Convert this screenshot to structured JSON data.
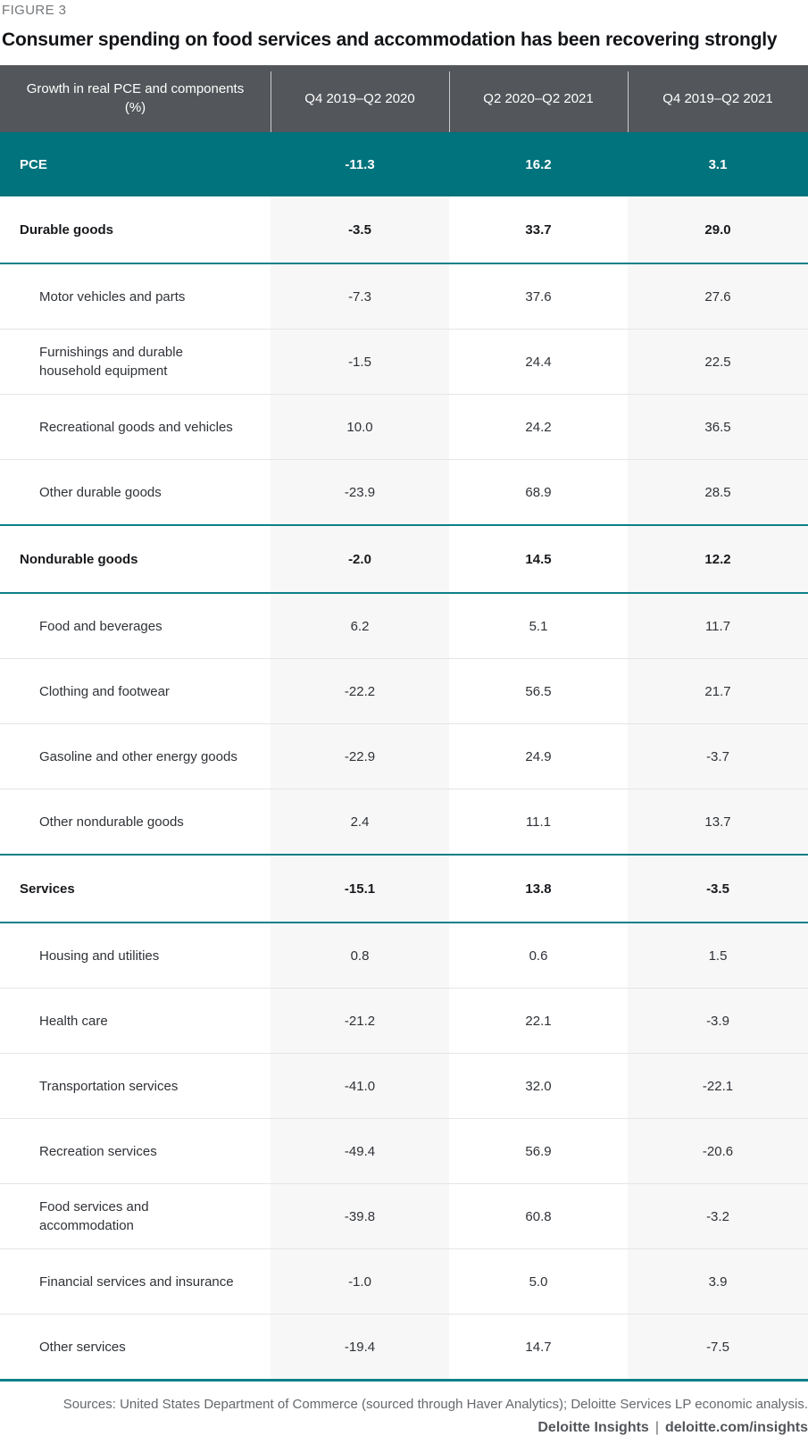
{
  "figure_label": "FIGURE 3",
  "title": "Consumer spending on food services and accommodation has been recovering strongly",
  "chart_data": {
    "type": "table",
    "title": "Consumer spending on food services and accommodation has been recovering strongly",
    "columns": [
      "Growth in real PCE and components (%)",
      "Q4 2019–Q2 2020",
      "Q2 2020–Q2 2021",
      "Q4 2019–Q2 2021"
    ],
    "rows": [
      {
        "label": "PCE",
        "values": [
          "-11.3",
          "16.2",
          "3.1"
        ],
        "type": "pce"
      },
      {
        "label": "Durable goods",
        "values": [
          "-3.5",
          "33.7",
          "29.0"
        ],
        "type": "section"
      },
      {
        "label": "Motor vehicles and parts",
        "values": [
          "-7.3",
          "37.6",
          "27.6"
        ],
        "type": "sub"
      },
      {
        "label": "Furnishings and durable\nhousehold equipment",
        "values": [
          "-1.5",
          "24.4",
          "22.5"
        ],
        "type": "sub"
      },
      {
        "label": "Recreational goods and vehicles",
        "values": [
          "10.0",
          "24.2",
          "36.5"
        ],
        "type": "sub"
      },
      {
        "label": "Other durable goods",
        "values": [
          "-23.9",
          "68.9",
          "28.5"
        ],
        "type": "sub-last"
      },
      {
        "label": "Nondurable goods",
        "values": [
          "-2.0",
          "14.5",
          "12.2"
        ],
        "type": "section"
      },
      {
        "label": "Food and beverages",
        "values": [
          "6.2",
          "5.1",
          "11.7"
        ],
        "type": "sub"
      },
      {
        "label": "Clothing and footwear",
        "values": [
          "-22.2",
          "56.5",
          "21.7"
        ],
        "type": "sub"
      },
      {
        "label": "Gasoline and other energy goods",
        "values": [
          "-22.9",
          "24.9",
          "-3.7"
        ],
        "type": "sub"
      },
      {
        "label": "Other nondurable goods",
        "values": [
          "2.4",
          "11.1",
          "13.7"
        ],
        "type": "sub-last"
      },
      {
        "label": "Services",
        "values": [
          "-15.1",
          "13.8",
          "-3.5"
        ],
        "type": "section"
      },
      {
        "label": "Housing and utilities",
        "values": [
          "0.8",
          "0.6",
          "1.5"
        ],
        "type": "sub"
      },
      {
        "label": "Health care",
        "values": [
          "-21.2",
          "22.1",
          "-3.9"
        ],
        "type": "sub"
      },
      {
        "label": "Transportation services",
        "values": [
          "-41.0",
          "32.0",
          "-22.1"
        ],
        "type": "sub"
      },
      {
        "label": "Recreation services",
        "values": [
          "-49.4",
          "56.9",
          "-20.6"
        ],
        "type": "sub"
      },
      {
        "label": "Food services and\naccommodation",
        "values": [
          "-39.8",
          "60.8",
          "-3.2"
        ],
        "type": "sub"
      },
      {
        "label": "Financial services and insurance",
        "values": [
          "-1.0",
          "5.0",
          "3.9"
        ],
        "type": "sub"
      },
      {
        "label": "Other services",
        "values": [
          "-19.4",
          "14.7",
          "-7.5"
        ],
        "type": "sub-last"
      }
    ]
  },
  "footer": {
    "sources": "Sources: United States Department of Commerce (sourced through Haver Analytics); Deloitte Services LP economic analysis.",
    "brand": "Deloitte Insights",
    "separator": "|",
    "link": "deloitte.com/insights"
  },
  "colors": {
    "header_bg": "#53565A",
    "pce_row_bg": "#00737C",
    "teal_rule": "#0D8089",
    "column_stripe_bg": "#F7F7F7",
    "figure_label_text": "#75787B",
    "footer_text": "#66696D"
  }
}
